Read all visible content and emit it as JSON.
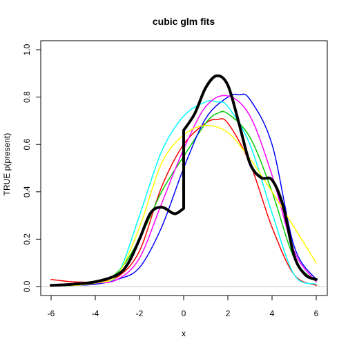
{
  "chart_data": {
    "type": "line",
    "title": "cubic glm fits",
    "xlabel": "x",
    "ylabel": "TRUE p(present)",
    "xlim": [
      -6,
      6
    ],
    "ylim": [
      0,
      1
    ],
    "xticks": [
      -6,
      -4,
      -2,
      0,
      2,
      4,
      6
    ],
    "yticks": [
      0.0,
      0.2,
      0.4,
      0.6,
      0.8,
      1.0
    ],
    "ytick_labels": [
      "0.0",
      "0.2",
      "0.4",
      "0.6",
      "0.8",
      "1.0"
    ],
    "reference_line": {
      "y": 0,
      "color": "#cccccc"
    },
    "series": [
      {
        "color": "#ff0000",
        "width": 1.5,
        "x": [
          -6,
          -5,
          -4,
          -3,
          -2,
          -1,
          0,
          1,
          1.5,
          2,
          3,
          4,
          5,
          6
        ],
        "y": [
          0.03,
          0.02,
          0.02,
          0.04,
          0.15,
          0.42,
          0.6,
          0.69,
          0.705,
          0.69,
          0.52,
          0.25,
          0.05,
          0.005
        ]
      },
      {
        "color": "#00cc00",
        "width": 1.5,
        "x": [
          -6,
          -5,
          -4,
          -3,
          -2,
          -1,
          0,
          1,
          1.5,
          2,
          3,
          4,
          5,
          6
        ],
        "y": [
          0.005,
          0.01,
          0.02,
          0.06,
          0.2,
          0.4,
          0.55,
          0.69,
          0.73,
          0.73,
          0.63,
          0.4,
          0.12,
          0.02
        ]
      },
      {
        "color": "#0000ff",
        "width": 1.5,
        "x": [
          -6,
          -5,
          -4,
          -3,
          -2,
          -1,
          0,
          1,
          2,
          2.5,
          3,
          4,
          5,
          6
        ],
        "y": [
          0.005,
          0.005,
          0.01,
          0.03,
          0.08,
          0.25,
          0.5,
          0.71,
          0.8,
          0.81,
          0.79,
          0.6,
          0.17,
          0.03
        ]
      },
      {
        "color": "#00ffff",
        "width": 1.5,
        "x": [
          -6,
          -5,
          -4,
          -3,
          -2,
          -1,
          0,
          1,
          1.5,
          2,
          3,
          4,
          5,
          6
        ],
        "y": [
          0.005,
          0.01,
          0.02,
          0.05,
          0.3,
          0.57,
          0.72,
          0.78,
          0.78,
          0.76,
          0.6,
          0.31,
          0.05,
          0.01
        ]
      },
      {
        "color": "#ff00ff",
        "width": 1.5,
        "x": [
          -6,
          -5,
          -4,
          -3,
          -2,
          -1,
          0,
          1,
          2,
          3,
          4,
          5,
          6
        ],
        "y": [
          0.005,
          0.01,
          0.015,
          0.03,
          0.12,
          0.35,
          0.58,
          0.76,
          0.805,
          0.72,
          0.47,
          0.15,
          0.02
        ]
      },
      {
        "color": "#ffff00",
        "width": 1.5,
        "x": [
          -6,
          -5,
          -4,
          -3,
          -2,
          -1,
          0,
          1,
          2,
          3,
          4,
          5,
          6
        ],
        "y": [
          0.005,
          0.005,
          0.015,
          0.05,
          0.25,
          0.52,
          0.64,
          0.68,
          0.65,
          0.54,
          0.4,
          0.25,
          0.1
        ]
      },
      {
        "color": "#000000",
        "width": 4,
        "x": [
          -6,
          -5,
          -4,
          -3,
          -2.5,
          -2,
          -1.5,
          -1,
          -0.5,
          -0.3,
          0,
          0,
          0.5,
          1,
          1.5,
          2,
          2.5,
          3,
          3.5,
          4,
          4.5,
          5,
          5.5,
          6
        ],
        "y": [
          0.005,
          0.01,
          0.02,
          0.05,
          0.1,
          0.2,
          0.31,
          0.335,
          0.31,
          0.31,
          0.33,
          0.66,
          0.73,
          0.84,
          0.89,
          0.85,
          0.69,
          0.52,
          0.46,
          0.45,
          0.34,
          0.13,
          0.05,
          0.03
        ]
      }
    ]
  }
}
